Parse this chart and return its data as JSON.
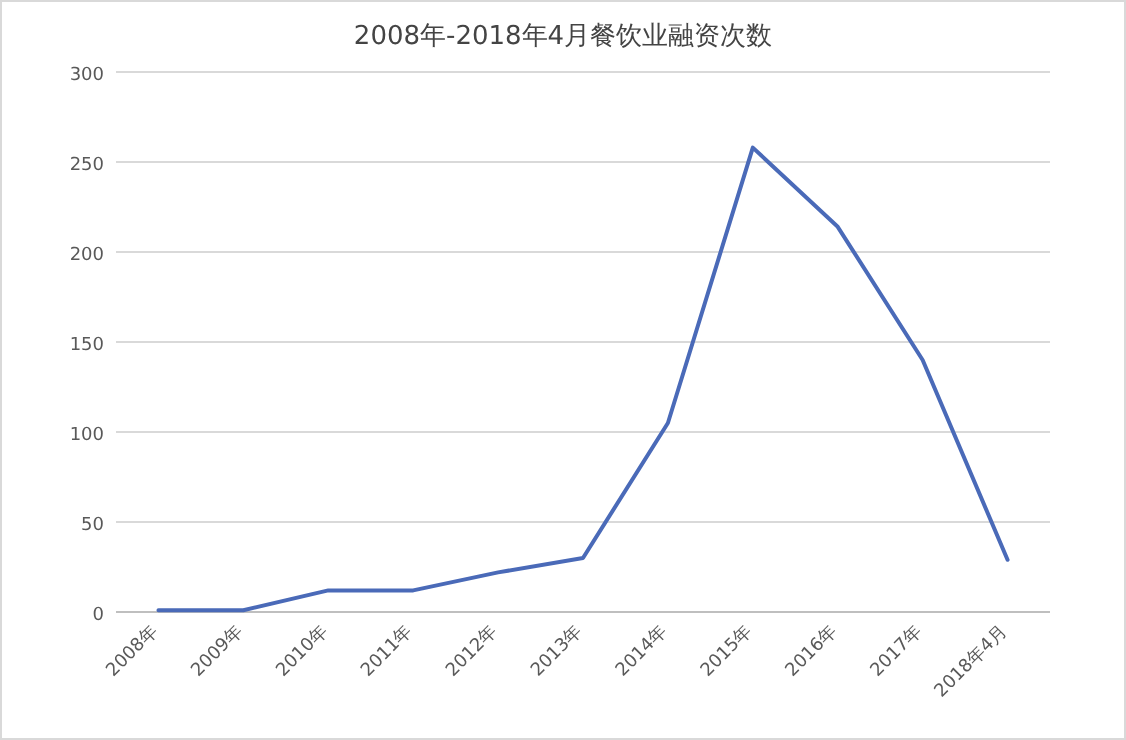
{
  "chart_data": {
    "type": "line",
    "title": "2008年-2018年4月餐饮业融资次数",
    "categories": [
      "2008年",
      "2009年",
      "2010年",
      "2011年",
      "2012年",
      "2013年",
      "2014年",
      "2015年",
      "2016年",
      "2017年",
      "2018年4月"
    ],
    "series": [
      {
        "color": "#4a6ab8",
        "values": [
          1,
          1,
          12,
          12,
          22,
          30,
          105,
          258,
          214,
          140,
          29
        ]
      }
    ],
    "ylim": [
      0,
      300
    ],
    "yticks": [
      0,
      50,
      100,
      150,
      200,
      250,
      300
    ],
    "grid": "y",
    "marker": "none",
    "line_style": "solid"
  }
}
